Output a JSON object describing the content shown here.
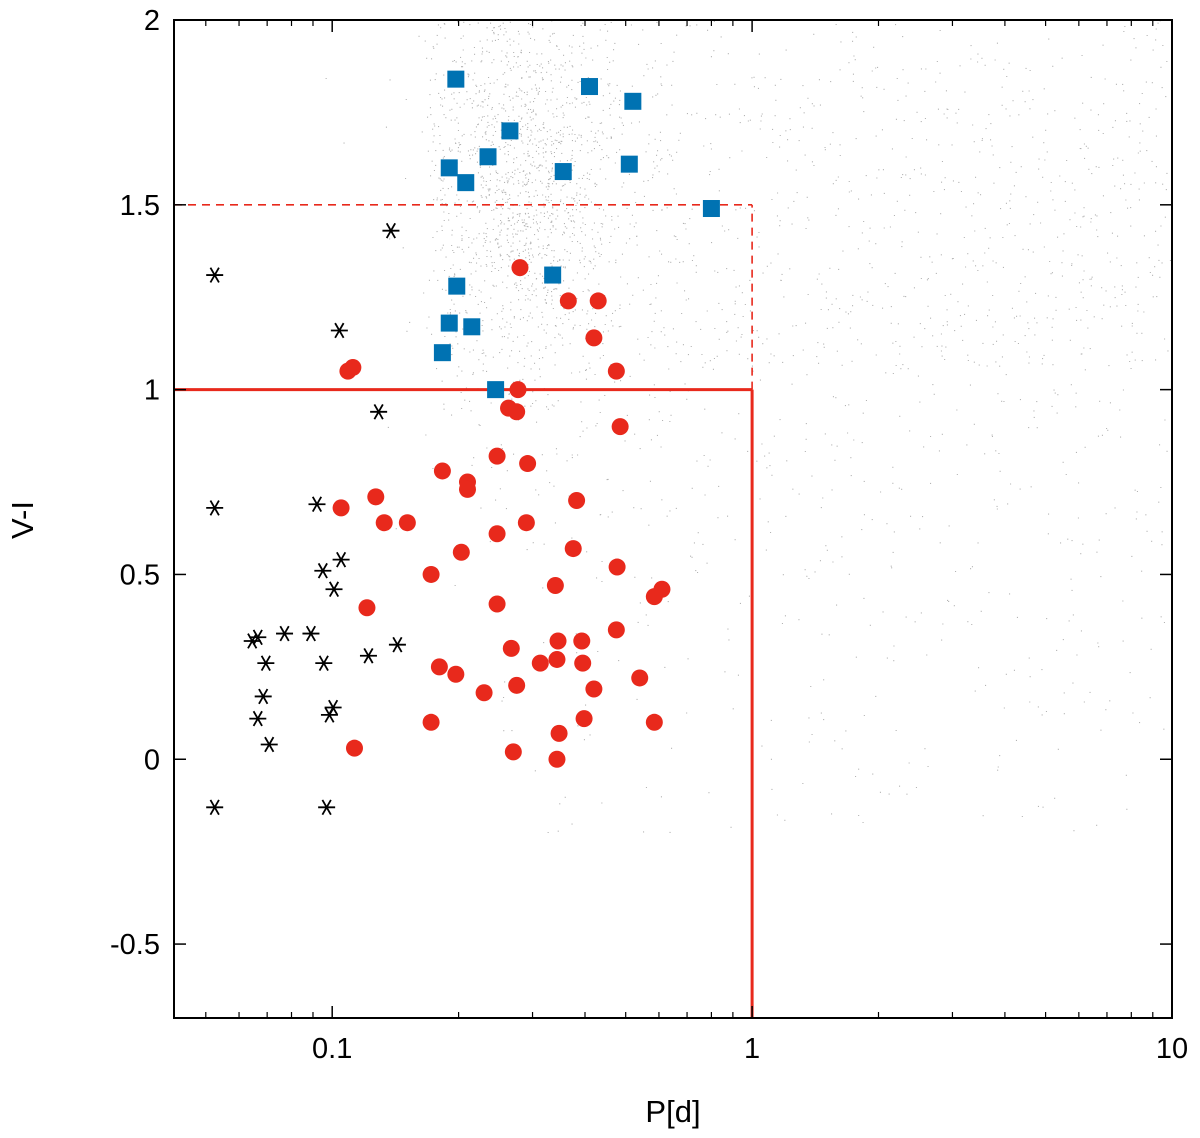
{
  "chart_data": {
    "type": "scatter",
    "title": "",
    "xlabel": "P[d]",
    "ylabel": "V-I",
    "xscale": "log",
    "xlim": [
      0.042,
      10
    ],
    "ylim": [
      -0.7,
      2
    ],
    "grid": false,
    "legend": "none",
    "x_ticks": [
      {
        "value": 0.1,
        "label": "0.1"
      },
      {
        "value": 1,
        "label": "1"
      },
      {
        "value": 10,
        "label": "10"
      }
    ],
    "x_minor_ticks": [
      0.05,
      0.06,
      0.07,
      0.08,
      0.09,
      0.2,
      0.3,
      0.4,
      0.5,
      0.6,
      0.7,
      0.8,
      0.9,
      2,
      3,
      4,
      5,
      6,
      7,
      8,
      9
    ],
    "y_ticks": [
      {
        "value": -0.5,
        "label": "-0.5"
      },
      {
        "value": 0,
        "label": "0"
      },
      {
        "value": 0.5,
        "label": "0.5"
      },
      {
        "value": 1,
        "label": "1"
      },
      {
        "value": 1.5,
        "label": "1.5"
      },
      {
        "value": 2,
        "label": "2"
      }
    ],
    "colors": {
      "background_cloud": "#b4b4b4",
      "squares": "#0072b2",
      "circles": "#e8291c",
      "stars": "#000000",
      "lines": "#e8291c"
    },
    "reference_lines": [
      {
        "style": "solid",
        "x": [
          0.042,
          1
        ],
        "y": [
          1,
          1
        ]
      },
      {
        "style": "solid",
        "x": [
          1,
          1
        ],
        "y": [
          -0.7,
          1
        ]
      },
      {
        "style": "dashed",
        "x": [
          0.042,
          1
        ],
        "y": [
          1.5,
          1.5
        ]
      },
      {
        "style": "dashed",
        "x": [
          1,
          1
        ],
        "y": [
          1,
          1.5
        ]
      }
    ],
    "series": [
      {
        "marker": "square",
        "points": [
          {
            "x": 0.197,
            "y": 1.84
          },
          {
            "x": 0.41,
            "y": 1.82
          },
          {
            "x": 0.52,
            "y": 1.78
          },
          {
            "x": 0.265,
            "y": 1.7
          },
          {
            "x": 0.235,
            "y": 1.63
          },
          {
            "x": 0.19,
            "y": 1.6
          },
          {
            "x": 0.51,
            "y": 1.61
          },
          {
            "x": 0.355,
            "y": 1.59
          },
          {
            "x": 0.208,
            "y": 1.56
          },
          {
            "x": 0.8,
            "y": 1.49
          },
          {
            "x": 0.335,
            "y": 1.31
          },
          {
            "x": 0.198,
            "y": 1.28
          },
          {
            "x": 0.19,
            "y": 1.18
          },
          {
            "x": 0.215,
            "y": 1.17
          },
          {
            "x": 0.183,
            "y": 1.1
          },
          {
            "x": 0.245,
            "y": 1.0
          }
        ]
      },
      {
        "marker": "circle",
        "points": [
          {
            "x": 0.28,
            "y": 1.33
          },
          {
            "x": 0.365,
            "y": 1.24
          },
          {
            "x": 0.43,
            "y": 1.24
          },
          {
            "x": 0.42,
            "y": 1.14
          },
          {
            "x": 0.112,
            "y": 1.06
          },
          {
            "x": 0.109,
            "y": 1.05
          },
          {
            "x": 0.475,
            "y": 1.05
          },
          {
            "x": 0.277,
            "y": 1.0
          },
          {
            "x": 0.263,
            "y": 0.95
          },
          {
            "x": 0.275,
            "y": 0.94
          },
          {
            "x": 0.485,
            "y": 0.9
          },
          {
            "x": 0.247,
            "y": 0.82
          },
          {
            "x": 0.292,
            "y": 0.8
          },
          {
            "x": 0.183,
            "y": 0.78
          },
          {
            "x": 0.21,
            "y": 0.75
          },
          {
            "x": 0.21,
            "y": 0.73
          },
          {
            "x": 0.127,
            "y": 0.71
          },
          {
            "x": 0.382,
            "y": 0.7
          },
          {
            "x": 0.105,
            "y": 0.68
          },
          {
            "x": 0.133,
            "y": 0.64
          },
          {
            "x": 0.151,
            "y": 0.64
          },
          {
            "x": 0.29,
            "y": 0.64
          },
          {
            "x": 0.247,
            "y": 0.61
          },
          {
            "x": 0.375,
            "y": 0.57
          },
          {
            "x": 0.203,
            "y": 0.56
          },
          {
            "x": 0.477,
            "y": 0.52
          },
          {
            "x": 0.172,
            "y": 0.5
          },
          {
            "x": 0.34,
            "y": 0.47
          },
          {
            "x": 0.61,
            "y": 0.46
          },
          {
            "x": 0.585,
            "y": 0.44
          },
          {
            "x": 0.247,
            "y": 0.42
          },
          {
            "x": 0.121,
            "y": 0.41
          },
          {
            "x": 0.475,
            "y": 0.35
          },
          {
            "x": 0.345,
            "y": 0.32
          },
          {
            "x": 0.393,
            "y": 0.32
          },
          {
            "x": 0.267,
            "y": 0.3
          },
          {
            "x": 0.343,
            "y": 0.27
          },
          {
            "x": 0.313,
            "y": 0.26
          },
          {
            "x": 0.395,
            "y": 0.26
          },
          {
            "x": 0.18,
            "y": 0.25
          },
          {
            "x": 0.197,
            "y": 0.23
          },
          {
            "x": 0.54,
            "y": 0.22
          },
          {
            "x": 0.275,
            "y": 0.2
          },
          {
            "x": 0.42,
            "y": 0.19
          },
          {
            "x": 0.23,
            "y": 0.18
          },
          {
            "x": 0.172,
            "y": 0.1
          },
          {
            "x": 0.398,
            "y": 0.11
          },
          {
            "x": 0.585,
            "y": 0.1
          },
          {
            "x": 0.347,
            "y": 0.07
          },
          {
            "x": 0.113,
            "y": 0.03
          },
          {
            "x": 0.27,
            "y": 0.02
          },
          {
            "x": 0.343,
            "y": 0.0
          }
        ]
      },
      {
        "marker": "star",
        "points": [
          {
            "x": 0.138,
            "y": 1.43
          },
          {
            "x": 0.0525,
            "y": 1.31
          },
          {
            "x": 0.104,
            "y": 1.16
          },
          {
            "x": 0.129,
            "y": 0.94
          },
          {
            "x": 0.092,
            "y": 0.69
          },
          {
            "x": 0.0525,
            "y": 0.68
          },
          {
            "x": 0.105,
            "y": 0.54
          },
          {
            "x": 0.095,
            "y": 0.51
          },
          {
            "x": 0.101,
            "y": 0.46
          },
          {
            "x": 0.0645,
            "y": 0.32
          },
          {
            "x": 0.0665,
            "y": 0.33
          },
          {
            "x": 0.077,
            "y": 0.34
          },
          {
            "x": 0.089,
            "y": 0.34
          },
          {
            "x": 0.143,
            "y": 0.31
          },
          {
            "x": 0.122,
            "y": 0.28
          },
          {
            "x": 0.0695,
            "y": 0.26
          },
          {
            "x": 0.0955,
            "y": 0.26
          },
          {
            "x": 0.0685,
            "y": 0.17
          },
          {
            "x": 0.1005,
            "y": 0.14
          },
          {
            "x": 0.0985,
            "y": 0.12
          },
          {
            "x": 0.0665,
            "y": 0.11
          },
          {
            "x": 0.0708,
            "y": 0.04
          },
          {
            "x": 0.0525,
            "y": -0.13
          },
          {
            "x": 0.097,
            "y": -0.13
          }
        ]
      }
    ]
  }
}
